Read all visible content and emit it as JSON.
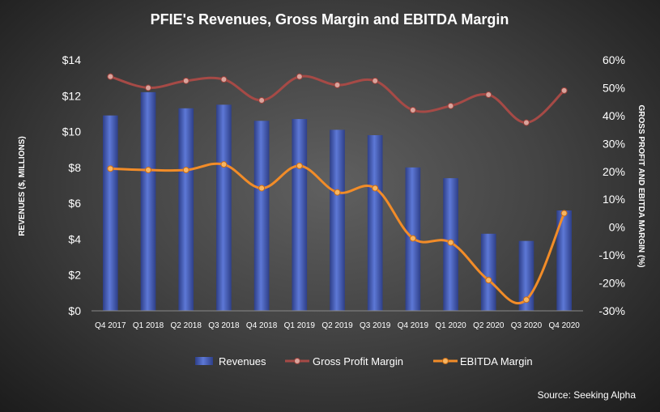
{
  "chart_data": {
    "type": "bar",
    "title": "PFIE's Revenues, Gross Margin and EBITDA Margin",
    "ylabel": "REVENUES ($, MILLIONS)",
    "y2label": "GROSS PROFIT AND EBITDA MARGIN (%)",
    "xlabel": "",
    "categories": [
      "Q4 2017",
      "Q1 2018",
      "Q2 2018",
      "Q3 2018",
      "Q4 2018",
      "Q1 2019",
      "Q2 2019",
      "Q3 2019",
      "Q4 2019",
      "Q1 2020",
      "Q2 2020",
      "Q3 2020",
      "Q4 2020"
    ],
    "ylim": [
      0,
      14
    ],
    "y2lim": [
      -30,
      60
    ],
    "y_ticks": [
      "$0",
      "$2",
      "$4",
      "$6",
      "$8",
      "$10",
      "$12",
      "$14"
    ],
    "y2_ticks": [
      "-30%",
      "-20%",
      "-10%",
      "0%",
      "10%",
      "20%",
      "30%",
      "40%",
      "50%",
      "60%"
    ],
    "series": [
      {
        "name": "Revenues",
        "type": "bar",
        "axis": "left",
        "color": "#4f68c4",
        "values": [
          10.9,
          12.2,
          11.3,
          11.5,
          10.6,
          10.7,
          10.1,
          9.8,
          8.0,
          7.4,
          4.3,
          3.9,
          5.6
        ]
      },
      {
        "name": "Gross Profit Margin",
        "type": "line",
        "axis": "right",
        "color": "#a64a46",
        "values": [
          54,
          50,
          52.5,
          53,
          45.5,
          54,
          51,
          52.5,
          42,
          43.5,
          47.5,
          37.5,
          49
        ]
      },
      {
        "name": "EBITDA Margin",
        "type": "line",
        "axis": "right",
        "color": "#f28c28",
        "values": [
          21,
          20.5,
          20.5,
          22.5,
          14,
          22,
          12.5,
          14,
          -4,
          -5.5,
          -19,
          -26,
          5
        ]
      }
    ],
    "legend": {
      "position": "bottom",
      "items": [
        "Revenues",
        "Gross Profit Margin",
        "EBITDA Margin"
      ]
    },
    "grid": false,
    "source": "Source: Seeking Alpha"
  }
}
